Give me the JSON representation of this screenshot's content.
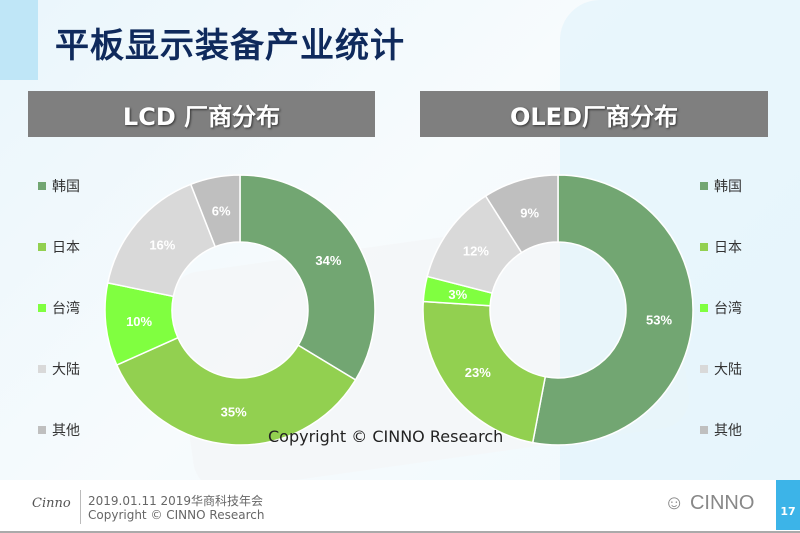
{
  "title": "平板显示装备产业统计",
  "colors": {
    "韩国": "#72a672",
    "日本": "#92d050",
    "台湾": "#80ff40",
    "大陆": "#d9d9d9",
    "其他": "#bfbfbf"
  },
  "legend": [
    "韩国",
    "日本",
    "台湾",
    "大陆",
    "其他"
  ],
  "chart_data": [
    {
      "type": "pie",
      "title": "LCD 厂商分布",
      "categories": [
        "韩国",
        "日本",
        "台湾",
        "大陆",
        "其他"
      ],
      "values": [
        34,
        35,
        10,
        16,
        6
      ],
      "labels": [
        "34%",
        "35%",
        "10%",
        "16%",
        "6%"
      ],
      "donut": true,
      "legend": "left"
    },
    {
      "type": "pie",
      "title": "OLED厂商分布",
      "categories": [
        "韩国",
        "日本",
        "台湾",
        "大陆",
        "其他"
      ],
      "values": [
        53,
        23,
        3,
        12,
        9
      ],
      "labels": [
        "53%",
        "23%",
        "3%",
        "12%",
        "9%"
      ],
      "donut": true,
      "legend": "right"
    }
  ],
  "watermark": "Copyright © CINNO Research",
  "footer": {
    "logo": "Cinno",
    "date_event": "2019.01.11  2019华商科技年会",
    "copyright": "Copyright © CINNO Research",
    "brand": "CINNO",
    "page": "17"
  }
}
